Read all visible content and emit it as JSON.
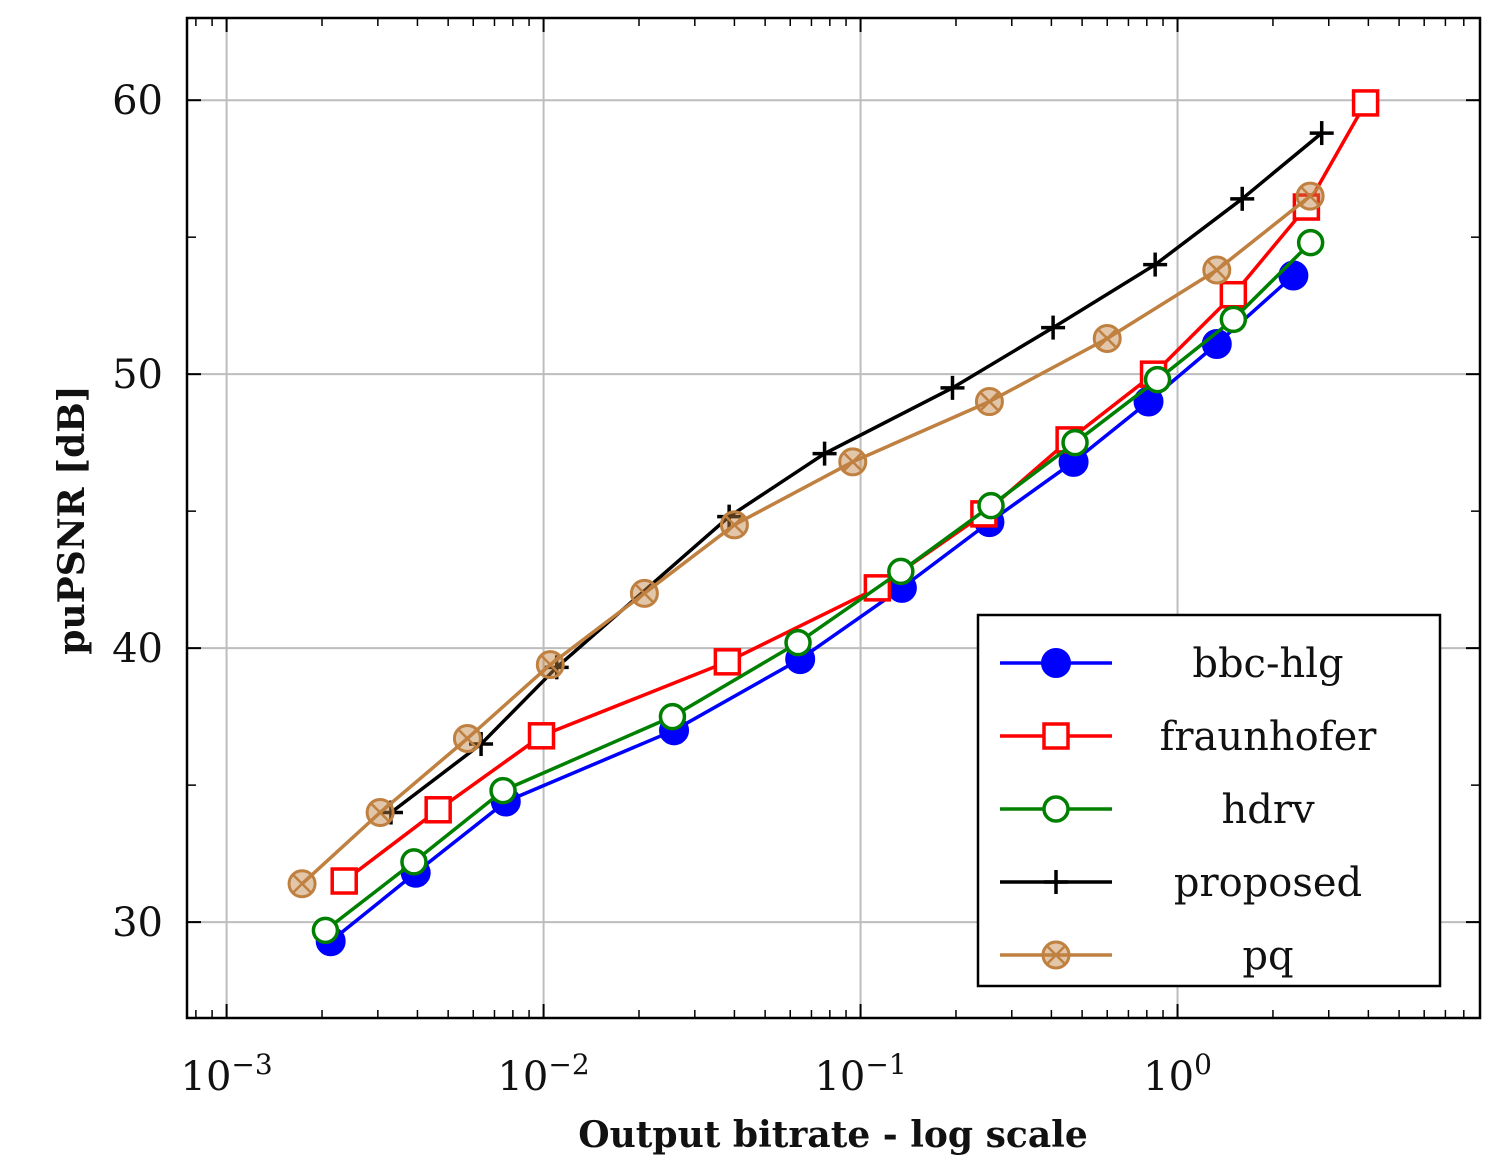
{
  "chart_data": {
    "type": "line",
    "xscale": "log",
    "xlabel": "Output bitrate - log scale",
    "ylabel": "puPSNR [dB]",
    "xlim": [
      0.00075,
      9
    ],
    "ylim": [
      26.5,
      63
    ],
    "xticks": [
      {
        "value": 0.001,
        "base": "10",
        "exp": "−3"
      },
      {
        "value": 0.01,
        "base": "10",
        "exp": "−2"
      },
      {
        "value": 0.1,
        "base": "10",
        "exp": "−1"
      },
      {
        "value": 1,
        "base": "10",
        "exp": "0"
      }
    ],
    "yticks": [
      {
        "value": 30,
        "label": "30"
      },
      {
        "value": 40,
        "label": "40"
      },
      {
        "value": 50,
        "label": "50"
      },
      {
        "value": 60,
        "label": "60"
      }
    ],
    "y_minor_ticks": [
      35,
      45,
      55
    ],
    "grid": true,
    "legend_position": "bottom-right",
    "series": [
      {
        "name": "bbc-hlg",
        "color": "#0000ff",
        "marker": "filled-circle",
        "x": [
          0.00213,
          0.00395,
          0.0076,
          0.0258,
          0.0645,
          0.135,
          0.255,
          0.47,
          0.81,
          1.33,
          2.32
        ],
        "y": [
          29.3,
          31.8,
          34.4,
          37.0,
          39.6,
          42.2,
          44.6,
          46.8,
          49.0,
          51.1,
          53.6
        ]
      },
      {
        "name": "fraunhofer",
        "color": "#ff0000",
        "marker": "open-square",
        "x": [
          0.00235,
          0.00465,
          0.00985,
          0.038,
          0.113,
          0.245,
          0.455,
          0.84,
          1.5,
          2.55,
          3.92
        ],
        "y": [
          31.5,
          34.1,
          36.8,
          39.5,
          42.2,
          44.9,
          47.6,
          50.0,
          52.9,
          56.1,
          59.9
        ]
      },
      {
        "name": "hdrv",
        "color": "#008000",
        "marker": "open-circle",
        "x": [
          0.00205,
          0.0039,
          0.00745,
          0.0255,
          0.0635,
          0.134,
          0.258,
          0.475,
          0.865,
          1.5,
          2.63
        ],
        "y": [
          29.7,
          32.2,
          34.8,
          37.5,
          40.2,
          42.8,
          45.2,
          47.5,
          49.8,
          52.0,
          54.8
        ]
      },
      {
        "name": "proposed",
        "color": "#000000",
        "marker": "plus",
        "x": [
          0.0033,
          0.00635,
          0.011,
          0.0385,
          0.077,
          0.195,
          0.405,
          0.85,
          1.6,
          2.85
        ],
        "y": [
          34.0,
          36.5,
          39.3,
          44.8,
          47.1,
          49.5,
          51.7,
          54.0,
          56.4,
          58.8
        ]
      },
      {
        "name": "pq",
        "color": "#bf8040",
        "marker": "circle-x",
        "x": [
          0.00173,
          0.00305,
          0.00575,
          0.0105,
          0.0208,
          0.04,
          0.0945,
          0.255,
          0.6,
          1.33,
          2.62
        ],
        "y": [
          31.4,
          34.0,
          36.7,
          39.4,
          42.0,
          44.5,
          46.8,
          49.0,
          51.3,
          53.8,
          56.5
        ]
      }
    ]
  }
}
